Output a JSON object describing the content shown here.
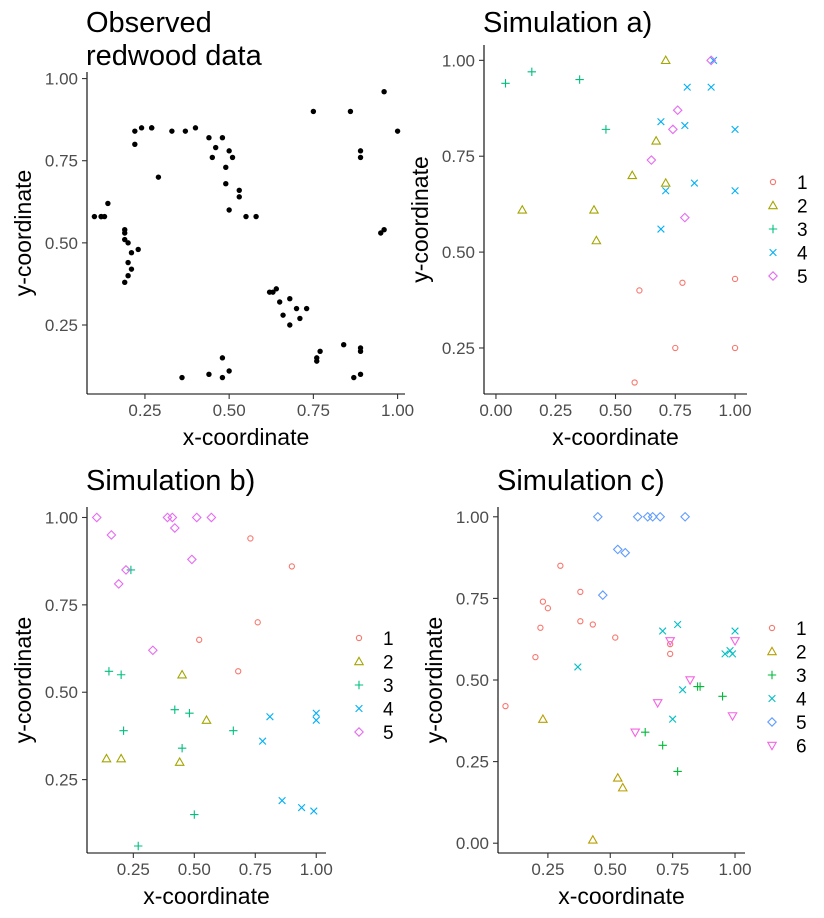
{
  "panels": [
    {
      "title": "Observed\nredwood data",
      "xlabel": "x-coordinate",
      "ylabel": "y-coordinate",
      "xticks": [
        "0.25",
        "0.50",
        "0.75",
        "1.00"
      ],
      "yticks": [
        "0.25",
        "0.50",
        "0.75",
        "1.00"
      ]
    },
    {
      "title": "Simulation a)",
      "xlabel": "x-coordinate",
      "ylabel": "y-coordinate",
      "xticks": [
        "0.00",
        "0.25",
        "0.50",
        "0.75",
        "1.00"
      ],
      "yticks": [
        "0.25",
        "0.50",
        "0.75",
        "1.00"
      ],
      "legend": [
        "1",
        "2",
        "3",
        "4",
        "5"
      ]
    },
    {
      "title": "Simulation b)",
      "xlabel": "x-coordinate",
      "ylabel": "y-coordinate",
      "xticks": [
        "0.25",
        "0.50",
        "0.75",
        "1.00"
      ],
      "yticks": [
        "0.25",
        "0.50",
        "0.75",
        "1.00"
      ],
      "legend": [
        "1",
        "2",
        "3",
        "4",
        "5"
      ]
    },
    {
      "title": "Simulation c)",
      "xlabel": "x-coordinate",
      "ylabel": "y-coordinate",
      "xticks": [
        "0.25",
        "0.50",
        "0.75",
        "1.00"
      ],
      "yticks": [
        "0.00",
        "0.25",
        "0.50",
        "0.75",
        "1.00"
      ],
      "legend": [
        "1",
        "2",
        "3",
        "4",
        "5",
        "6"
      ]
    }
  ],
  "palette5": [
    "#f8766d",
    "#a3a500",
    "#00bf7d",
    "#00b0f6",
    "#e76bf3"
  ],
  "palette6": [
    "#f8766d",
    "#b79f00",
    "#00ba38",
    "#00bfc4",
    "#619cff",
    "#f564e3"
  ],
  "shapes": [
    "circle",
    "triangle-up",
    "plus",
    "cross",
    "diamond",
    "triangle-down"
  ],
  "chart_data": [
    {
      "type": "scatter",
      "title": "Observed\nredwood data",
      "xlabel": "x-coordinate",
      "ylabel": "y-coordinate",
      "xlim": [
        0.078,
        1.022
      ],
      "ylim": [
        0.04,
        1.02
      ],
      "grid": false,
      "series": [
        {
          "x": [
            0.1,
            0.12,
            0.13,
            0.14,
            0.12,
            0.19,
            0.19,
            0.2,
            0.2,
            0.21,
            0.23,
            0.21,
            0.2,
            0.19,
            0.19,
            0.22,
            0.22,
            0.24,
            0.27,
            0.29,
            0.27,
            0.33,
            0.37,
            0.4,
            0.44,
            0.48,
            0.45,
            0.46,
            0.5,
            0.49,
            0.51,
            0.49,
            0.53,
            0.55,
            0.58,
            0.5,
            0.53,
            0.36,
            0.44,
            0.48,
            0.5,
            0.48,
            0.62,
            0.64,
            0.63,
            0.65,
            0.66,
            0.68,
            0.71,
            0.7,
            0.68,
            0.73,
            0.76,
            0.76,
            0.77,
            0.75,
            0.86,
            0.89,
            0.89,
            0.89,
            0.87,
            0.89,
            0.89,
            0.84,
            0.95,
            0.96,
            0.96,
            1.0
          ],
          "y": [
            0.58,
            0.58,
            0.58,
            0.62,
            0.58,
            0.54,
            0.53,
            0.5,
            0.44,
            0.47,
            0.48,
            0.42,
            0.4,
            0.38,
            0.51,
            0.8,
            0.84,
            0.85,
            0.85,
            0.7,
            0.85,
            0.84,
            0.84,
            0.85,
            0.82,
            0.82,
            0.76,
            0.79,
            0.78,
            0.73,
            0.76,
            0.68,
            0.66,
            0.58,
            0.58,
            0.6,
            0.64,
            0.09,
            0.1,
            0.09,
            0.11,
            0.15,
            0.35,
            0.36,
            0.35,
            0.32,
            0.28,
            0.25,
            0.27,
            0.3,
            0.33,
            0.3,
            0.15,
            0.14,
            0.17,
            0.9,
            0.9,
            0.76,
            0.78,
            0.18,
            0.09,
            0.1,
            0.17,
            0.19,
            0.53,
            0.54,
            0.96,
            0.84
          ]
        }
      ]
    },
    {
      "type": "scatter",
      "title": "Simulation a)",
      "xlabel": "x-coordinate",
      "ylabel": "y-coordinate",
      "xlim": [
        -0.05,
        1.05
      ],
      "ylim": [
        0.13,
        1.04
      ],
      "grid": false,
      "legend_position": "right",
      "series": [
        {
          "name": "1",
          "x": [
            0.58,
            0.6,
            0.75,
            0.78,
            1.0,
            1.0
          ],
          "y": [
            0.16,
            0.4,
            0.25,
            0.42,
            0.43,
            0.25
          ]
        },
        {
          "name": "2",
          "x": [
            0.11,
            0.41,
            0.42,
            0.57,
            0.67,
            0.71,
            0.71
          ],
          "y": [
            0.61,
            0.61,
            0.53,
            0.7,
            0.79,
            0.68,
            1.0
          ]
        },
        {
          "name": "3",
          "x": [
            0.04,
            0.15,
            0.35,
            0.46
          ],
          "y": [
            0.94,
            0.97,
            0.95,
            0.82
          ]
        },
        {
          "name": "4",
          "x": [
            0.69,
            0.71,
            0.69,
            0.79,
            0.8,
            0.83,
            0.9,
            0.91,
            1.0,
            1.0
          ],
          "y": [
            0.84,
            0.66,
            0.56,
            0.83,
            0.93,
            0.68,
            0.93,
            1.0,
            0.66,
            0.82
          ]
        },
        {
          "name": "5",
          "x": [
            0.65,
            0.74,
            0.76,
            0.79,
            0.9
          ],
          "y": [
            0.74,
            0.82,
            0.87,
            0.59,
            1.0
          ]
        }
      ]
    },
    {
      "type": "scatter",
      "title": "Simulation b)",
      "xlabel": "x-coordinate",
      "ylabel": "y-coordinate",
      "xlim": [
        0.06,
        1.04
      ],
      "ylim": [
        0.04,
        1.03
      ],
      "grid": false,
      "legend_position": "right",
      "series": [
        {
          "name": "1",
          "x": [
            0.52,
            0.68,
            0.73,
            0.76,
            0.9
          ],
          "y": [
            0.65,
            0.56,
            0.94,
            0.7,
            0.86
          ]
        },
        {
          "name": "2",
          "x": [
            0.14,
            0.2,
            0.44,
            0.45,
            0.55
          ],
          "y": [
            0.31,
            0.31,
            0.3,
            0.55,
            0.42
          ]
        },
        {
          "name": "3",
          "x": [
            0.15,
            0.2,
            0.21,
            0.24,
            0.27,
            0.42,
            0.45,
            0.48,
            0.5,
            0.66
          ],
          "y": [
            0.56,
            0.55,
            0.39,
            0.85,
            0.06,
            0.45,
            0.34,
            0.44,
            0.15,
            0.39
          ]
        },
        {
          "name": "4",
          "x": [
            0.78,
            0.81,
            0.86,
            0.94,
            0.99,
            1.0,
            1.0
          ],
          "y": [
            0.36,
            0.43,
            0.19,
            0.17,
            0.16,
            0.44,
            0.42
          ]
        },
        {
          "name": "5",
          "x": [
            0.1,
            0.16,
            0.19,
            0.22,
            0.33,
            0.39,
            0.41,
            0.42,
            0.49,
            0.51,
            0.57
          ],
          "y": [
            1.0,
            0.95,
            0.81,
            0.85,
            0.62,
            1.0,
            1.0,
            0.97,
            0.88,
            1.0,
            1.0
          ]
        }
      ]
    },
    {
      "type": "scatter",
      "title": "Simulation c)",
      "xlabel": "x-coordinate",
      "ylabel": "y-coordinate",
      "xlim": [
        0.05,
        1.04
      ],
      "ylim": [
        -0.03,
        1.03
      ],
      "grid": false,
      "legend_position": "right",
      "series": [
        {
          "name": "1",
          "x": [
            0.08,
            0.2,
            0.22,
            0.23,
            0.25,
            0.3,
            0.38,
            0.38,
            0.43,
            0.52,
            0.74,
            0.74
          ],
          "y": [
            0.42,
            0.57,
            0.66,
            0.74,
            0.72,
            0.85,
            0.68,
            0.77,
            0.67,
            0.63,
            0.58,
            0.61
          ]
        },
        {
          "name": "2",
          "x": [
            0.23,
            0.43,
            0.53,
            0.55
          ],
          "y": [
            0.38,
            0.01,
            0.2,
            0.17
          ]
        },
        {
          "name": "3",
          "x": [
            0.64,
            0.71,
            0.77,
            0.85,
            0.86,
            0.95
          ],
          "y": [
            0.34,
            0.3,
            0.22,
            0.48,
            0.48,
            0.45
          ]
        },
        {
          "name": "4",
          "x": [
            0.37,
            0.71,
            0.75,
            0.77,
            0.79,
            0.96,
            0.98,
            0.99,
            1.0
          ],
          "y": [
            0.54,
            0.65,
            0.38,
            0.67,
            0.47,
            0.58,
            0.59,
            0.58,
            0.65
          ]
        },
        {
          "name": "5",
          "x": [
            0.45,
            0.47,
            0.53,
            0.56,
            0.61,
            0.65,
            0.67,
            0.7,
            0.8
          ],
          "y": [
            1.0,
            0.76,
            0.9,
            0.89,
            1.0,
            1.0,
            1.0,
            1.0,
            1.0
          ]
        },
        {
          "name": "6",
          "x": [
            0.6,
            0.69,
            0.74,
            0.82,
            0.99,
            1.0
          ],
          "y": [
            0.34,
            0.43,
            0.62,
            0.5,
            0.39,
            0.62
          ]
        }
      ]
    }
  ]
}
